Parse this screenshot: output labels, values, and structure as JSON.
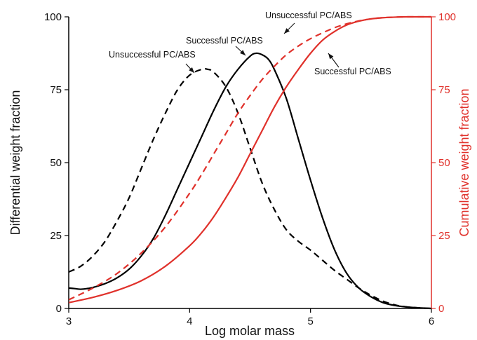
{
  "chart_data": {
    "type": "line",
    "xlabel": "Log molar mass",
    "ylabel": "Differential weight fraction",
    "ylabel_right": "Cumulative  weight fraction",
    "xlim": [
      3,
      6
    ],
    "ylim": [
      0,
      100
    ],
    "ylim_right": [
      0,
      100
    ],
    "x_ticks": [
      3,
      4,
      5,
      6
    ],
    "y_ticks": [
      0,
      25,
      50,
      75,
      100
    ],
    "y_ticks_right": [
      0,
      25,
      50,
      75,
      100
    ],
    "grid": false,
    "legend": "none",
    "colors": {
      "differential": "#000000",
      "cumulative": "#e0312b"
    },
    "series": [
      {
        "axis": "left",
        "style": "solid",
        "color": "#000000",
        "x": [
          3.0,
          3.05,
          3.1,
          3.15,
          3.2,
          3.3,
          3.4,
          3.5,
          3.6,
          3.7,
          3.8,
          3.9,
          4.0,
          4.1,
          4.2,
          4.3,
          4.4,
          4.5,
          4.55,
          4.6,
          4.65,
          4.7,
          4.8,
          4.9,
          5.0,
          5.1,
          5.2,
          5.3,
          5.4,
          5.5,
          5.6,
          5.7,
          5.8,
          5.9,
          6.0
        ],
        "y": [
          7,
          6.8,
          6.6,
          6.8,
          7.2,
          8.5,
          10.5,
          13.5,
          18,
          24,
          32,
          41,
          50,
          59,
          68,
          76,
          82,
          86.5,
          87.5,
          87,
          85.5,
          82,
          72,
          58,
          44,
          31,
          20,
          12,
          7,
          4,
          2,
          1,
          0.5,
          0.2,
          0
        ]
      },
      {
        "axis": "left",
        "style": "dashed",
        "color": "#000000",
        "x": [
          3.0,
          3.1,
          3.2,
          3.3,
          3.4,
          3.5,
          3.6,
          3.7,
          3.8,
          3.9,
          4.0,
          4.1,
          4.15,
          4.2,
          4.3,
          4.4,
          4.5,
          4.6,
          4.7,
          4.8,
          4.9,
          5.0,
          5.1,
          5.2,
          5.3,
          5.4,
          5.5,
          5.6,
          5.7,
          5.8,
          5.9,
          6.0
        ],
        "y": [
          12.5,
          14.5,
          18,
          23,
          30,
          38,
          48,
          58,
          67,
          75,
          80,
          82,
          82,
          81,
          76,
          67,
          55,
          43,
          34,
          27,
          23,
          20,
          16.5,
          13,
          10,
          7,
          4.5,
          2.5,
          1.2,
          0.5,
          0.2,
          0
        ]
      },
      {
        "axis": "right",
        "style": "solid",
        "color": "#e0312b",
        "x": [
          3.0,
          3.2,
          3.4,
          3.6,
          3.8,
          4.0,
          4.1,
          4.2,
          4.3,
          4.4,
          4.5,
          4.6,
          4.7,
          4.8,
          4.9,
          5.0,
          5.1,
          5.2,
          5.3,
          5.4,
          5.5,
          5.6,
          5.7,
          5.8,
          5.9,
          6.0
        ],
        "y": [
          2,
          3.8,
          6.2,
          9.5,
          14.5,
          21.5,
          26,
          31.5,
          38,
          45,
          53,
          61,
          69,
          76,
          82,
          87.5,
          92,
          95,
          97.2,
          98.5,
          99.3,
          99.7,
          99.9,
          100,
          100,
          100
        ]
      },
      {
        "axis": "right",
        "style": "dashed",
        "color": "#e0312b",
        "x": [
          3.0,
          3.2,
          3.4,
          3.6,
          3.8,
          4.0,
          4.1,
          4.2,
          4.3,
          4.4,
          4.5,
          4.6,
          4.7,
          4.8,
          4.9,
          5.0,
          5.1,
          5.2,
          5.3,
          5.4,
          5.5,
          5.6,
          5.7,
          5.8,
          5.9,
          6.0
        ],
        "y": [
          3,
          7,
          12,
          19,
          28,
          39.5,
          46,
          53,
          60,
          67,
          73,
          78.5,
          83,
          87,
          90,
          92.5,
          94.5,
          96.3,
          97.6,
          98.6,
          99.3,
          99.7,
          99.9,
          100,
          100,
          100
        ]
      }
    ],
    "annotations": [
      {
        "id": "annot_unsucc_diff",
        "text": "Unsuccessful PC/ABS",
        "x": 4.05,
        "y": 81
      },
      {
        "id": "annot_succ_diff",
        "text": "Successful PC/ABS",
        "x": 4.58,
        "y": 88
      },
      {
        "id": "annot_unsucc_cum",
        "text": "Unsuccessful PC/ABS",
        "x": 4.92,
        "y": 93
      },
      {
        "id": "annot_succ_cum",
        "text": "Successful PC/ABS",
        "x": 5.1,
        "y": 87
      }
    ]
  }
}
